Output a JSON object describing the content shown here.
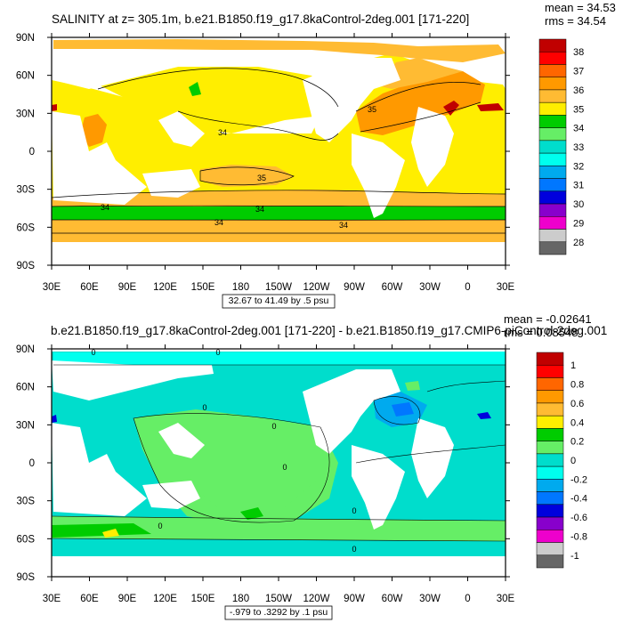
{
  "panels": [
    {
      "title": "SALINITY at z= 305.1m, b.e21.B1850.f19_g17.8kaControl-2deg.001 [171-220]",
      "stats": [
        "mean = 34.53",
        "rms = 34.54"
      ],
      "x_ticks": [
        "30E",
        "60E",
        "90E",
        "120E",
        "150E",
        "180",
        "150W",
        "120W",
        "90W",
        "60W",
        "30W",
        "0",
        "30E"
      ],
      "y_ticks": [
        "90N",
        "60N",
        "30N",
        "0",
        "30S",
        "60S",
        "90S"
      ],
      "range_label": "32.67 to 41.49 by .5 psu",
      "colorbar": {
        "labels": [
          "38",
          "37",
          "36",
          "35",
          "34",
          "33",
          "32",
          "31",
          "30",
          "29",
          "28"
        ],
        "colors": [
          "#c00000",
          "#ff0000",
          "#ff6600",
          "#ff9900",
          "#ffbb33",
          "#ffee00",
          "#00cc00",
          "#66ee66",
          "#00ddcc",
          "#00ffee",
          "#00aaee",
          "#0077ff",
          "#0000dd",
          "#8800cc",
          "#ee00cc",
          "#cccccc",
          "#666666"
        ]
      },
      "contour_labels": [
        "34",
        "35",
        "34",
        "34",
        "34",
        "34",
        "35"
      ]
    },
    {
      "title": "b.e21.B1850.f19_g17.8kaControl-2deg.001 [171-220] - b.e21.B1850.f19_g17.CMIP6-piControl-2deg.001",
      "stats": [
        "mean = -0.02641",
        "rms = 0.08548"
      ],
      "x_ticks": [
        "30E",
        "60E",
        "90E",
        "120E",
        "150E",
        "180",
        "150W",
        "120W",
        "90W",
        "60W",
        "30W",
        "0",
        "30E"
      ],
      "y_ticks": [
        "90N",
        "60N",
        "30N",
        "0",
        "30S",
        "60S",
        "90S"
      ],
      "range_label": "-.979 to .3292 by .1 psu",
      "colorbar": {
        "labels": [
          "1",
          "0.8",
          "0.6",
          "0.4",
          "0.2",
          "0",
          "-0.2",
          "-0.4",
          "-0.6",
          "-0.8",
          "-1"
        ],
        "colors": [
          "#c00000",
          "#ff0000",
          "#ff6600",
          "#ff9900",
          "#ffbb33",
          "#ffee00",
          "#00cc00",
          "#66ee66",
          "#00ddcc",
          "#00ffee",
          "#00aaee",
          "#0077ff",
          "#0000dd",
          "#8800cc",
          "#ee00cc",
          "#cccccc",
          "#666666"
        ]
      },
      "contour_labels": [
        "0",
        "0",
        "0",
        "0",
        "0",
        "0",
        "0",
        "0"
      ]
    }
  ]
}
